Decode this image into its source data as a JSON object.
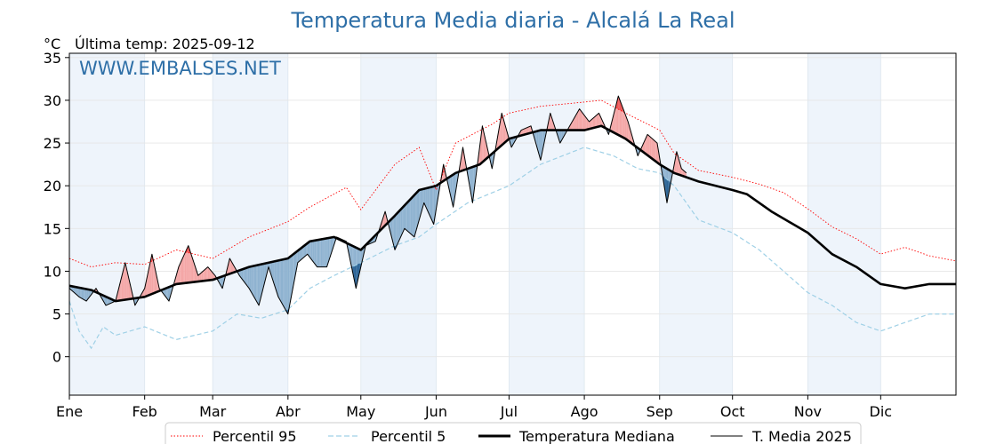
{
  "chart_data": {
    "type": "line",
    "title": "Temperatura Media diaria - Alcalá La Real",
    "unit_label": "°C",
    "last_temp_label": "Última temp: 2025-09-12",
    "watermark": "WWW.EMBALSES.NET",
    "ylim": [
      -4.5,
      35.5
    ],
    "yticks": [
      0,
      5,
      10,
      15,
      20,
      25,
      30,
      35
    ],
    "xlim": [
      1,
      366
    ],
    "months": [
      "Ene",
      "Feb",
      "Mar",
      "Abr",
      "May",
      "Jun",
      "Jul",
      "Ago",
      "Sep",
      "Oct",
      "Nov",
      "Dic"
    ],
    "month_start_days": [
      1,
      32,
      60,
      91,
      121,
      152,
      182,
      213,
      244,
      274,
      305,
      335
    ],
    "grid": true,
    "legend_position": "bottom",
    "colors": {
      "p95": "#ff0000",
      "p5": "#9fd0e6",
      "median": "#000000",
      "current": "#000000",
      "above": "#f4a6a6",
      "above_strong": "#ee5555",
      "below": "#8eb2d0",
      "below_strong": "#2c6496",
      "band": "#eef4fb"
    },
    "series": [
      {
        "name": "Percentil 95",
        "style": "dotted",
        "x": [
          1,
          10,
          20,
          32,
          45,
          60,
          75,
          91,
          100,
          115,
          121,
          135,
          145,
          152,
          160,
          175,
          182,
          195,
          213,
          220,
          230,
          244,
          250,
          260,
          274,
          285,
          295,
          305,
          315,
          325,
          335,
          345,
          355,
          366
        ],
        "values": [
          11.5,
          10.5,
          11,
          10.8,
          12.5,
          11.5,
          14,
          15.8,
          17.5,
          19.8,
          17.2,
          22.5,
          24.5,
          19.5,
          25,
          27.2,
          28.5,
          29.3,
          29.8,
          30,
          28.5,
          26.5,
          23.8,
          21.8,
          21,
          20.2,
          19.2,
          17.3,
          15.2,
          13.8,
          12,
          12.8,
          11.8,
          11.2
        ]
      },
      {
        "name": "Percentil 5",
        "style": "dashed",
        "x": [
          1,
          5,
          10,
          15,
          20,
          32,
          45,
          60,
          70,
          80,
          91,
          100,
          110,
          121,
          135,
          145,
          152,
          165,
          182,
          195,
          213,
          225,
          235,
          244,
          250,
          260,
          274,
          285,
          295,
          305,
          315,
          325,
          335,
          345,
          355,
          366
        ],
        "values": [
          6.5,
          3,
          1,
          3.5,
          2.5,
          3.5,
          2,
          3,
          5,
          4.5,
          5.5,
          8,
          9.5,
          11,
          13,
          14,
          15.5,
          18,
          20,
          22.5,
          24.5,
          23.5,
          22,
          21.5,
          20,
          16,
          14.5,
          12.5,
          10,
          7.5,
          6,
          4,
          3,
          4,
          5,
          5
        ]
      },
      {
        "name": "Temperatura Mediana",
        "style": "solid-thick",
        "x": [
          1,
          10,
          20,
          32,
          45,
          60,
          75,
          91,
          100,
          110,
          121,
          135,
          145,
          152,
          160,
          170,
          182,
          195,
          213,
          220,
          230,
          244,
          250,
          260,
          274,
          280,
          290,
          305,
          315,
          325,
          335,
          345,
          355,
          366
        ],
        "values": [
          8.3,
          7.8,
          6.5,
          7,
          8.5,
          9,
          10.5,
          11.5,
          13.5,
          14,
          12.5,
          16.5,
          19.5,
          20,
          21.5,
          22.5,
          25.5,
          26.5,
          26.5,
          27,
          25.5,
          22.5,
          21.5,
          20.5,
          19.5,
          19,
          17,
          14.5,
          12,
          10.5,
          8.5,
          8,
          8.5,
          8.5
        ]
      },
      {
        "name": "T. Media 2025",
        "style": "solid",
        "x": [
          1,
          5,
          8,
          12,
          16,
          20,
          24,
          28,
          32,
          35,
          38,
          42,
          46,
          50,
          54,
          58,
          61,
          64,
          67,
          71,
          75,
          79,
          83,
          87,
          91,
          95,
          99,
          103,
          107,
          111,
          115,
          119,
          123,
          127,
          131,
          135,
          139,
          143,
          147,
          151,
          155,
          159,
          163,
          167,
          171,
          175,
          179,
          183,
          187,
          191,
          195,
          199,
          203,
          207,
          211,
          215,
          219,
          223,
          227,
          231,
          235,
          239,
          243,
          247,
          251,
          253,
          255
        ],
        "values": [
          8,
          7,
          6.5,
          8,
          6,
          6.5,
          11,
          6,
          8,
          12,
          8,
          6.5,
          10.5,
          13,
          9.5,
          10.5,
          9.5,
          8,
          11.5,
          9.5,
          8,
          6,
          10.5,
          7,
          5,
          11,
          12,
          10.5,
          10.5,
          14,
          13.5,
          8,
          13,
          13.5,
          17,
          12.5,
          15,
          14,
          18,
          15.5,
          22.5,
          17.5,
          24.5,
          18,
          27,
          22,
          28.5,
          24.5,
          26.5,
          27,
          23,
          28.5,
          25,
          27,
          29,
          27.5,
          28.5,
          26,
          30.5,
          27.5,
          23.5,
          26,
          25,
          18,
          24,
          22,
          21.5
        ]
      }
    ]
  }
}
